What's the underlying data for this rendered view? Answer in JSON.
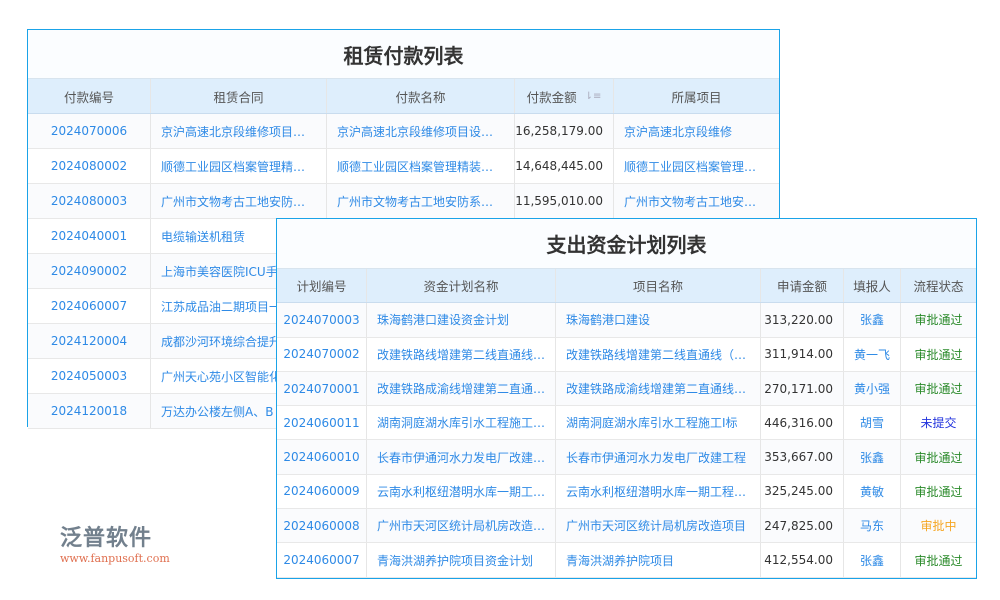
{
  "rent": {
    "title": "租赁付款列表",
    "headers": [
      "付款编号",
      "租赁合同",
      "付款名称",
      "付款金额",
      "所属项目"
    ],
    "rows": [
      [
        "2024070006",
        "京沪高速北京段维修项目…",
        "京沪高速北京段维修项目设…",
        "16,258,179.00",
        "京沪高速北京段维修"
      ],
      [
        "2024080002",
        "顺德工业园区档案管理精…",
        "顺德工业园区档案管理精装…",
        "14,648,445.00",
        "顺德工业园区档案管理…"
      ],
      [
        "2024080003",
        "广州市文物考古工地安防…",
        "广州市文物考古工地安防系…",
        "11,595,010.00",
        "广州市文物考古工地安…"
      ],
      [
        "2024040001",
        "电缆输送机租赁",
        "",
        "",
        ""
      ],
      [
        "2024090002",
        "上海市美容医院ICU手",
        "",
        "",
        ""
      ],
      [
        "2024060007",
        "江苏成品油二期项目一",
        "",
        "",
        ""
      ],
      [
        "2024120004",
        "成都沙河环境综合提升",
        "",
        "",
        ""
      ],
      [
        "2024050003",
        "广州天心苑小区智能化",
        "",
        "",
        ""
      ],
      [
        "2024120018",
        "万达办公楼左侧A、B",
        "",
        "",
        ""
      ]
    ]
  },
  "plan": {
    "title": "支出资金计划列表",
    "headers": [
      "计划编号",
      "资金计划名称",
      "项目名称",
      "申请金额",
      "填报人",
      "流程状态"
    ],
    "rows": [
      [
        "2024070003",
        "珠海鹤港口建设资金计划",
        "珠海鹤港口建设",
        "313,220.00",
        "张鑫",
        "审批通过"
      ],
      [
        "2024070002",
        "改建铁路线增建第二线直通线…",
        "改建铁路线增建第二线直通线（…",
        "311,914.00",
        "黄一飞",
        "审批通过"
      ],
      [
        "2024070001",
        "改建铁路成渝线增建第二直通…",
        "改建铁路成渝线增建第二直通线…",
        "270,171.00",
        "黄小强",
        "审批通过"
      ],
      [
        "2024060011",
        "湖南洞庭湖水库引水工程施工…",
        "湖南洞庭湖水库引水工程施工I标",
        "446,316.00",
        "胡雪",
        "未提交"
      ],
      [
        "2024060010",
        "长春市伊通河水力发电厂改建…",
        "长春市伊通河水力发电厂改建工程",
        "353,667.00",
        "张鑫",
        "审批通过"
      ],
      [
        "2024060009",
        "云南水利枢纽潜明水库一期工…",
        "云南水利枢纽潜明水库一期工程…",
        "325,245.00",
        "黄敏",
        "审批通过"
      ],
      [
        "2024060008",
        "广州市天河区统计局机房改造…",
        "广州市天河区统计局机房改造项目",
        "247,825.00",
        "马东",
        "审批中"
      ],
      [
        "2024060007",
        "青海洪湖养护院项目资金计划",
        "青海洪湖养护院项目",
        "412,554.00",
        "张鑫",
        "审批通过"
      ]
    ]
  },
  "watermark": {
    "name": "泛普软件",
    "url": "www.fanpusoft.com"
  },
  "colors": {
    "border": "#1aa3e8",
    "header": "#deeefc",
    "link": "#2e8ae6",
    "approved": "#2a8a2a",
    "unsubmitted": "#2233dd",
    "pending": "#f5a623"
  }
}
